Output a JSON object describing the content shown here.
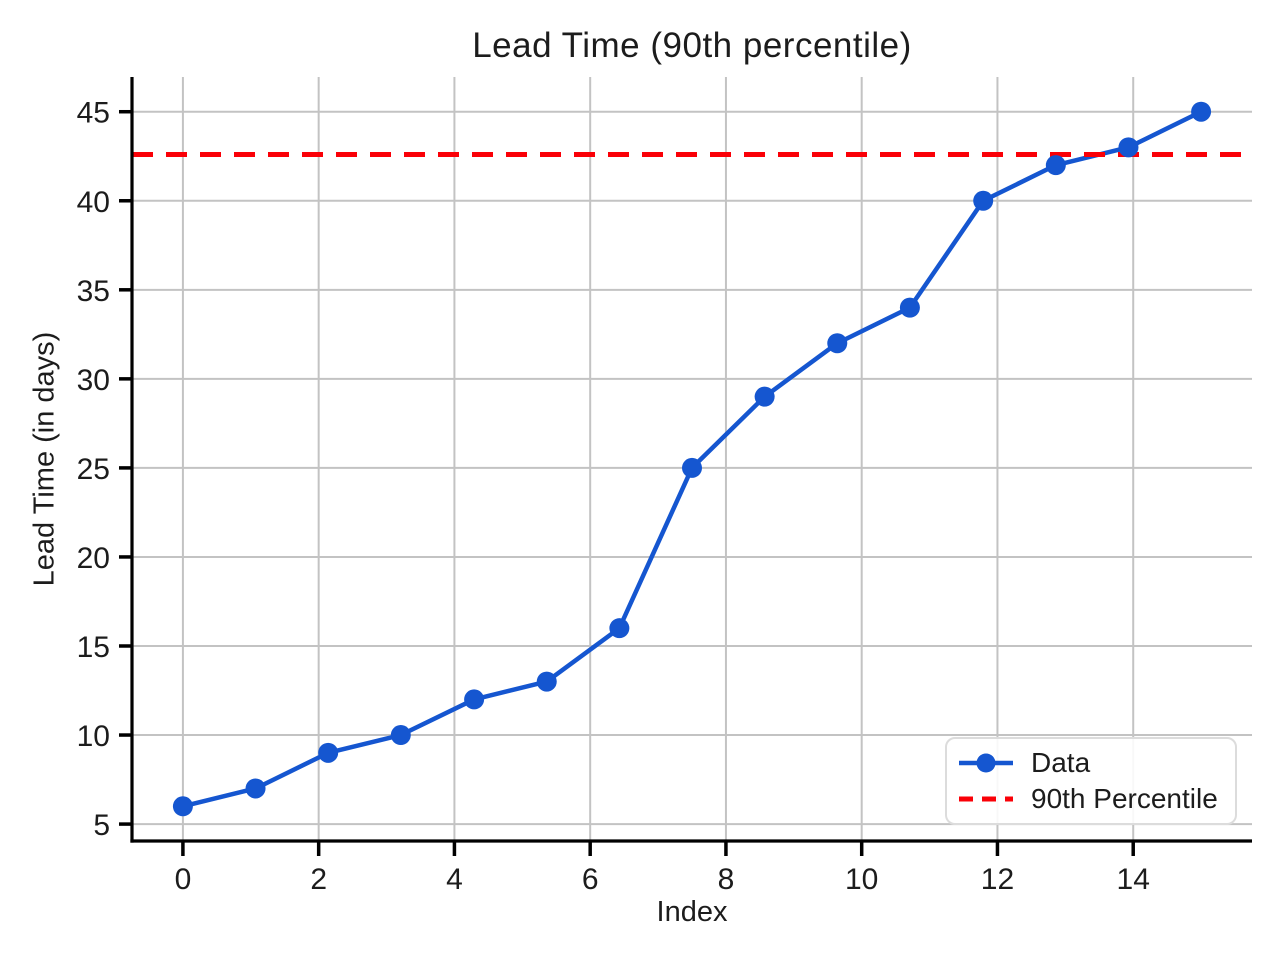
{
  "chart_data": {
    "type": "line",
    "title": "Lead Time (90th percentile)",
    "xlabel": "Index",
    "ylabel": "Lead Time (in days)",
    "series": [
      {
        "name": "Data",
        "x": [
          0,
          1.07,
          2.14,
          3.21,
          4.29,
          5.36,
          6.43,
          7.5,
          8.57,
          9.64,
          10.71,
          11.79,
          12.86,
          13.93,
          15
        ],
        "values": [
          6,
          7,
          9,
          10,
          12,
          13,
          16,
          25,
          29,
          32,
          34,
          40,
          42,
          43,
          45
        ],
        "style": "solid-line-with-circle-markers"
      }
    ],
    "reference_line": {
      "label": "90th Percentile",
      "value": 42.6,
      "orientation": "horizontal",
      "style": "dashed"
    },
    "xticks": [
      0,
      2,
      4,
      6,
      8,
      10,
      12,
      14
    ],
    "yticks": [
      5,
      10,
      15,
      20,
      25,
      30,
      35,
      40,
      45
    ],
    "xlim": [
      -0.75,
      15.75
    ],
    "ylim": [
      4.05,
      46.95
    ],
    "grid": true,
    "legend": {
      "position": "lower right",
      "entries": [
        {
          "label": "Data",
          "glyph": "line-with-marker"
        },
        {
          "label": "90th Percentile",
          "glyph": "dashed-line"
        }
      ]
    },
    "colors": {
      "series": "#1556d0",
      "reference": "#fa0007",
      "grid": "#c3c3c3",
      "spine": "#000000",
      "text": "#1c1c1c",
      "legend_border": "#dcdcdc",
      "background": "#ffffff"
    }
  }
}
